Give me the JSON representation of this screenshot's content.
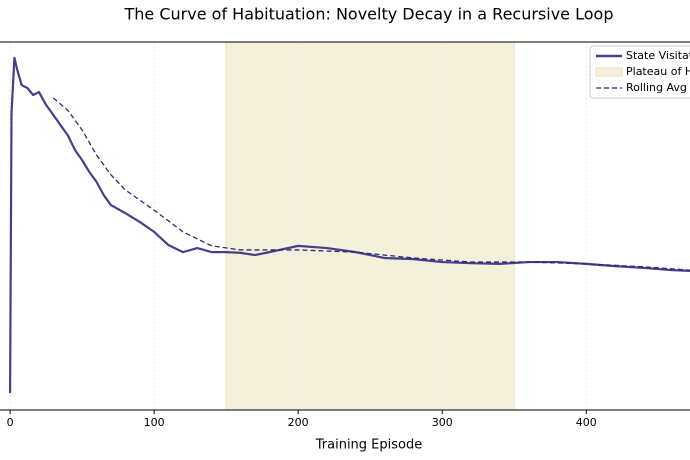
{
  "chart_data": {
    "type": "line",
    "title": "The Curve of Habituation: Novelty Decay in a Recursive Loop",
    "xlabel": "Training Episode",
    "xlim": [
      -7,
      472
    ],
    "ylim": [
      0,
      1
    ],
    "xticks": [
      0,
      100,
      200,
      300,
      400
    ],
    "grid": true,
    "legend": "upper right",
    "span": {
      "name": "Plateau of H",
      "start": 150,
      "end": 350,
      "color": "#f5f0dc"
    },
    "series": [
      {
        "name": "State Visitat",
        "color": "#483d8b",
        "style": "solid",
        "x": [
          0,
          1,
          3,
          5,
          8,
          12,
          16,
          20,
          25,
          30,
          35,
          40,
          45,
          50,
          55,
          60,
          65,
          70,
          80,
          90,
          100,
          110,
          120,
          130,
          140,
          150,
          160,
          170,
          180,
          200,
          220,
          240,
          260,
          280,
          300,
          320,
          340,
          360,
          380,
          400,
          420,
          440,
          460,
          472
        ],
        "values": [
          0.046,
          0.807,
          0.957,
          0.924,
          0.883,
          0.875,
          0.856,
          0.864,
          0.829,
          0.802,
          0.774,
          0.747,
          0.707,
          0.679,
          0.647,
          0.62,
          0.584,
          0.557,
          0.535,
          0.511,
          0.484,
          0.448,
          0.429,
          0.44,
          0.429,
          0.429,
          0.427,
          0.421,
          0.429,
          0.446,
          0.44,
          0.429,
          0.413,
          0.41,
          0.402,
          0.399,
          0.397,
          0.402,
          0.402,
          0.397,
          0.391,
          0.386,
          0.38,
          0.378
        ]
      },
      {
        "name": "Rolling Avg",
        "color": "#2e2a6b",
        "style": "dashed",
        "x": [
          30,
          40,
          50,
          60,
          70,
          80,
          100,
          120,
          140,
          160,
          200,
          240,
          280,
          320,
          360,
          400,
          440,
          472
        ],
        "values": [
          0.848,
          0.815,
          0.761,
          0.693,
          0.639,
          0.598,
          0.543,
          0.484,
          0.446,
          0.435,
          0.435,
          0.429,
          0.413,
          0.402,
          0.402,
          0.397,
          0.389,
          0.38
        ]
      }
    ]
  }
}
